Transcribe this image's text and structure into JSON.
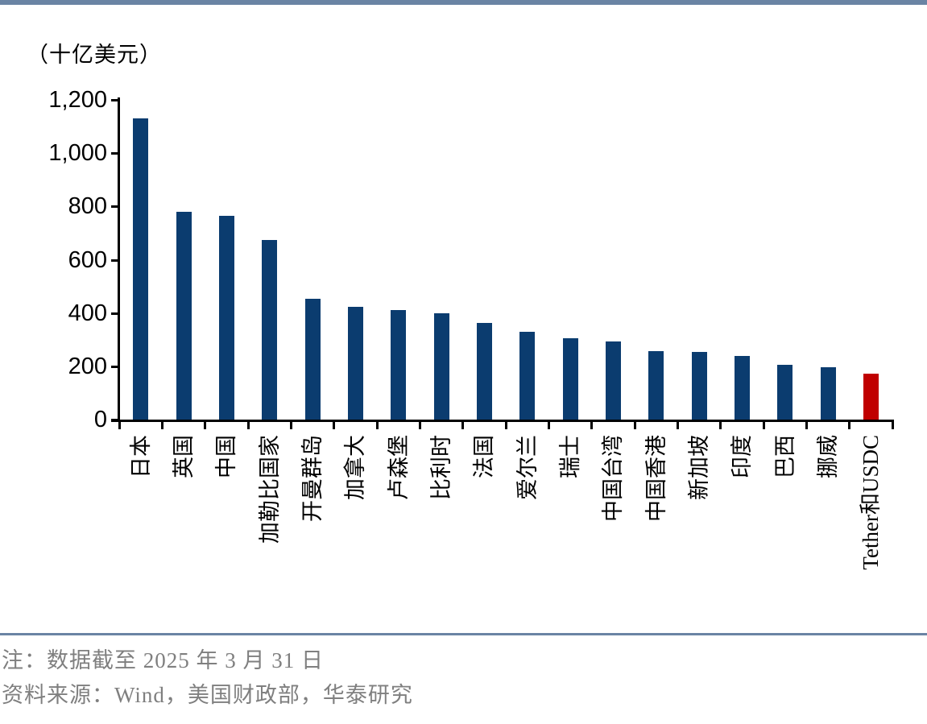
{
  "accent": {
    "top_bar_color": "#6A84A4",
    "divider_color": "#6A84A4"
  },
  "chart_data": {
    "type": "bar",
    "title": "（十亿美元）",
    "ylabel": "十亿美元",
    "xlabel": "",
    "categories": [
      "日本",
      "英国",
      "中国",
      "加勒比国家",
      "开曼群岛",
      "加拿大",
      "卢森堡",
      "比利时",
      "法国",
      "爱尔兰",
      "瑞士",
      "中国台湾",
      "中国香港",
      "新加坡",
      "印度",
      "巴西",
      "挪威",
      "Tether和USDC"
    ],
    "values": [
      1131,
      780,
      765,
      673,
      453,
      424,
      411,
      399,
      362,
      328,
      306,
      293,
      258,
      255,
      238,
      206,
      196,
      171
    ],
    "highlight_index": 17,
    "bar_color": "#0B3C6F",
    "highlight_color": "#C00000",
    "ylim": [
      0,
      1200
    ],
    "y_ticks": [
      "0",
      "200",
      "400",
      "600",
      "800",
      "1,000",
      "1,200"
    ],
    "grid": false,
    "legend_position": "none"
  },
  "footer": {
    "note": "注：数据截至 2025 年 3 月 31 日",
    "source": "资料来源：Wind，美国财政部，华泰研究",
    "text_color": "#7F7F7F"
  }
}
